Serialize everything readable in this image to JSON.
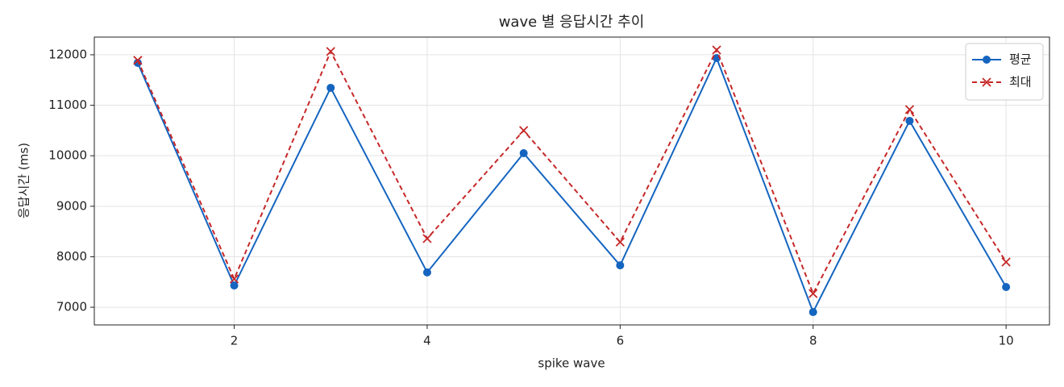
{
  "chart_data": {
    "type": "line",
    "title": "wave 별 응답시간 추이",
    "xlabel": "spike wave",
    "ylabel": "응답시간 (ms)",
    "x": [
      1,
      2,
      3,
      4,
      5,
      6,
      7,
      8,
      9,
      10
    ],
    "series": [
      {
        "name": "평균",
        "color": "#1565c0",
        "marker": "o",
        "linestyle": "solid",
        "values": [
          11840,
          7430,
          11345,
          7690,
          10050,
          7830,
          11935,
          6905,
          10690,
          7400
        ]
      },
      {
        "name": "최대",
        "color": "#c62828",
        "marker": "x",
        "linestyle": "dashed",
        "values": [
          11890,
          7560,
          12065,
          8360,
          10500,
          8290,
          12095,
          7270,
          10915,
          7895
        ]
      }
    ],
    "xlim": [
      0.55,
      10.45
    ],
    "ylim": [
      6650,
      12350
    ],
    "xticks": [
      2,
      4,
      6,
      8,
      10
    ],
    "yticks": [
      7000,
      8000,
      9000,
      10000,
      11000,
      12000
    ],
    "grid": true,
    "legend": "upper right"
  }
}
